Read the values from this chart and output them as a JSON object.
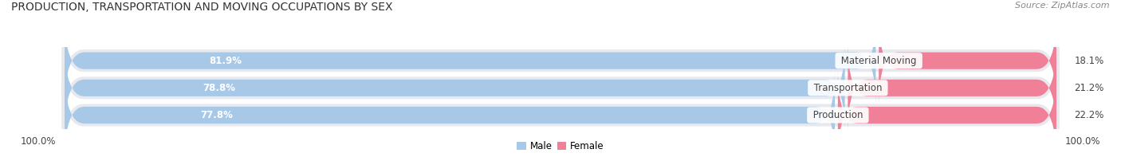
{
  "title": "PRODUCTION, TRANSPORTATION AND MOVING OCCUPATIONS BY SEX",
  "source": "Source: ZipAtlas.com",
  "categories": [
    "Material Moving",
    "Transportation",
    "Production"
  ],
  "male_values": [
    81.9,
    78.8,
    77.8
  ],
  "female_values": [
    18.1,
    21.2,
    22.2
  ],
  "male_color": "#a8c8e8",
  "female_color": "#f08098",
  "bar_bg_color": "#e8e8ef",
  "male_label": "Male",
  "female_label": "Female",
  "left_tick": "100.0%",
  "right_tick": "100.0%",
  "title_fontsize": 10,
  "label_fontsize": 8.5,
  "tick_fontsize": 8.5,
  "source_fontsize": 8,
  "text_color_dark": "#444444",
  "text_color_light": "white"
}
